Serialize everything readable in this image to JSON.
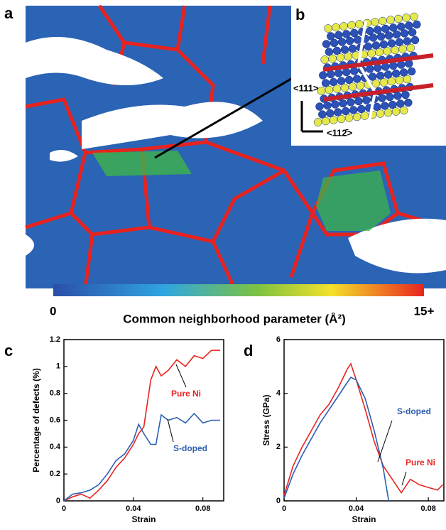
{
  "panels": {
    "a": "a",
    "b": "b",
    "c": "c",
    "d": "d"
  },
  "inset": {
    "dir_vertical": "<111>",
    "dir_horizontal": "<112̄>"
  },
  "colorbar": {
    "min_label": "0",
    "max_label": "15+",
    "title": "Common neighborhood parameter (Å²)"
  },
  "chart_data": [
    {
      "type": "line",
      "xlabel": "Strain",
      "ylabel": "Percentage of defects (%)",
      "xlim": [
        0,
        0.092
      ],
      "ylim": [
        0,
        1.2
      ],
      "xticks": [
        0,
        0.04,
        0.08
      ],
      "yticks": [
        0,
        0.2,
        0.4,
        0.6,
        0.8,
        1,
        1.2
      ],
      "series": [
        {
          "name": "Pure Ni",
          "color": "#e8231f",
          "x": [
            0,
            0.005,
            0.01,
            0.015,
            0.02,
            0.025,
            0.03,
            0.035,
            0.04,
            0.043,
            0.046,
            0.05,
            0.053,
            0.056,
            0.06,
            0.065,
            0.07,
            0.075,
            0.08,
            0.085,
            0.09
          ],
          "values": [
            0,
            0.03,
            0.05,
            0.02,
            0.08,
            0.15,
            0.25,
            0.32,
            0.42,
            0.5,
            0.55,
            0.9,
            1.0,
            0.93,
            0.97,
            1.05,
            1.0,
            1.08,
            1.06,
            1.12,
            1.12
          ]
        },
        {
          "name": "S-doped",
          "color": "#2a5fb0",
          "x": [
            0,
            0.005,
            0.01,
            0.015,
            0.02,
            0.025,
            0.03,
            0.035,
            0.04,
            0.043,
            0.046,
            0.05,
            0.053,
            0.056,
            0.06,
            0.065,
            0.07,
            0.075,
            0.08,
            0.085,
            0.09
          ],
          "values": [
            0,
            0.05,
            0.06,
            0.08,
            0.12,
            0.2,
            0.3,
            0.35,
            0.45,
            0.57,
            0.5,
            0.42,
            0.42,
            0.64,
            0.6,
            0.62,
            0.58,
            0.65,
            0.58,
            0.6,
            0.6
          ]
        }
      ],
      "annotations": [
        {
          "text": "Pure Ni",
          "color": "#e8231f"
        },
        {
          "text": "S-doped",
          "color": "#2a5fb0"
        }
      ]
    },
    {
      "type": "line",
      "xlabel": "Strain",
      "ylabel": "Stress (GPa)",
      "xlim": [
        0,
        0.0886
      ],
      "ylim": [
        0,
        6
      ],
      "xticks": [
        0,
        0.04,
        0.08
      ],
      "yticks": [
        0,
        2,
        4,
        6
      ],
      "series": [
        {
          "name": "Pure Ni",
          "color": "#e8231f",
          "x": [
            0,
            0.005,
            0.01,
            0.015,
            0.02,
            0.025,
            0.03,
            0.035,
            0.037,
            0.04,
            0.045,
            0.05,
            0.055,
            0.06,
            0.065,
            0.07,
            0.075,
            0.08,
            0.085,
            0.088
          ],
          "values": [
            0.2,
            1.3,
            2.0,
            2.6,
            3.2,
            3.6,
            4.2,
            4.9,
            5.1,
            4.5,
            3.4,
            2.2,
            1.3,
            0.8,
            0.3,
            0.8,
            0.6,
            0.5,
            0.4,
            0.6
          ]
        },
        {
          "name": "S-doped",
          "color": "#2a5fb0",
          "x": [
            0,
            0.005,
            0.01,
            0.015,
            0.02,
            0.025,
            0.03,
            0.035,
            0.037,
            0.04,
            0.045,
            0.05,
            0.055,
            0.058
          ],
          "values": [
            0.1,
            1.0,
            1.7,
            2.3,
            2.9,
            3.4,
            3.9,
            4.4,
            4.6,
            4.5,
            3.8,
            2.6,
            1.2,
            0
          ]
        }
      ],
      "annotations": [
        {
          "text": "S-doped",
          "color": "#2a5fb0"
        },
        {
          "text": "Pure Ni",
          "color": "#e8231f"
        }
      ]
    }
  ]
}
